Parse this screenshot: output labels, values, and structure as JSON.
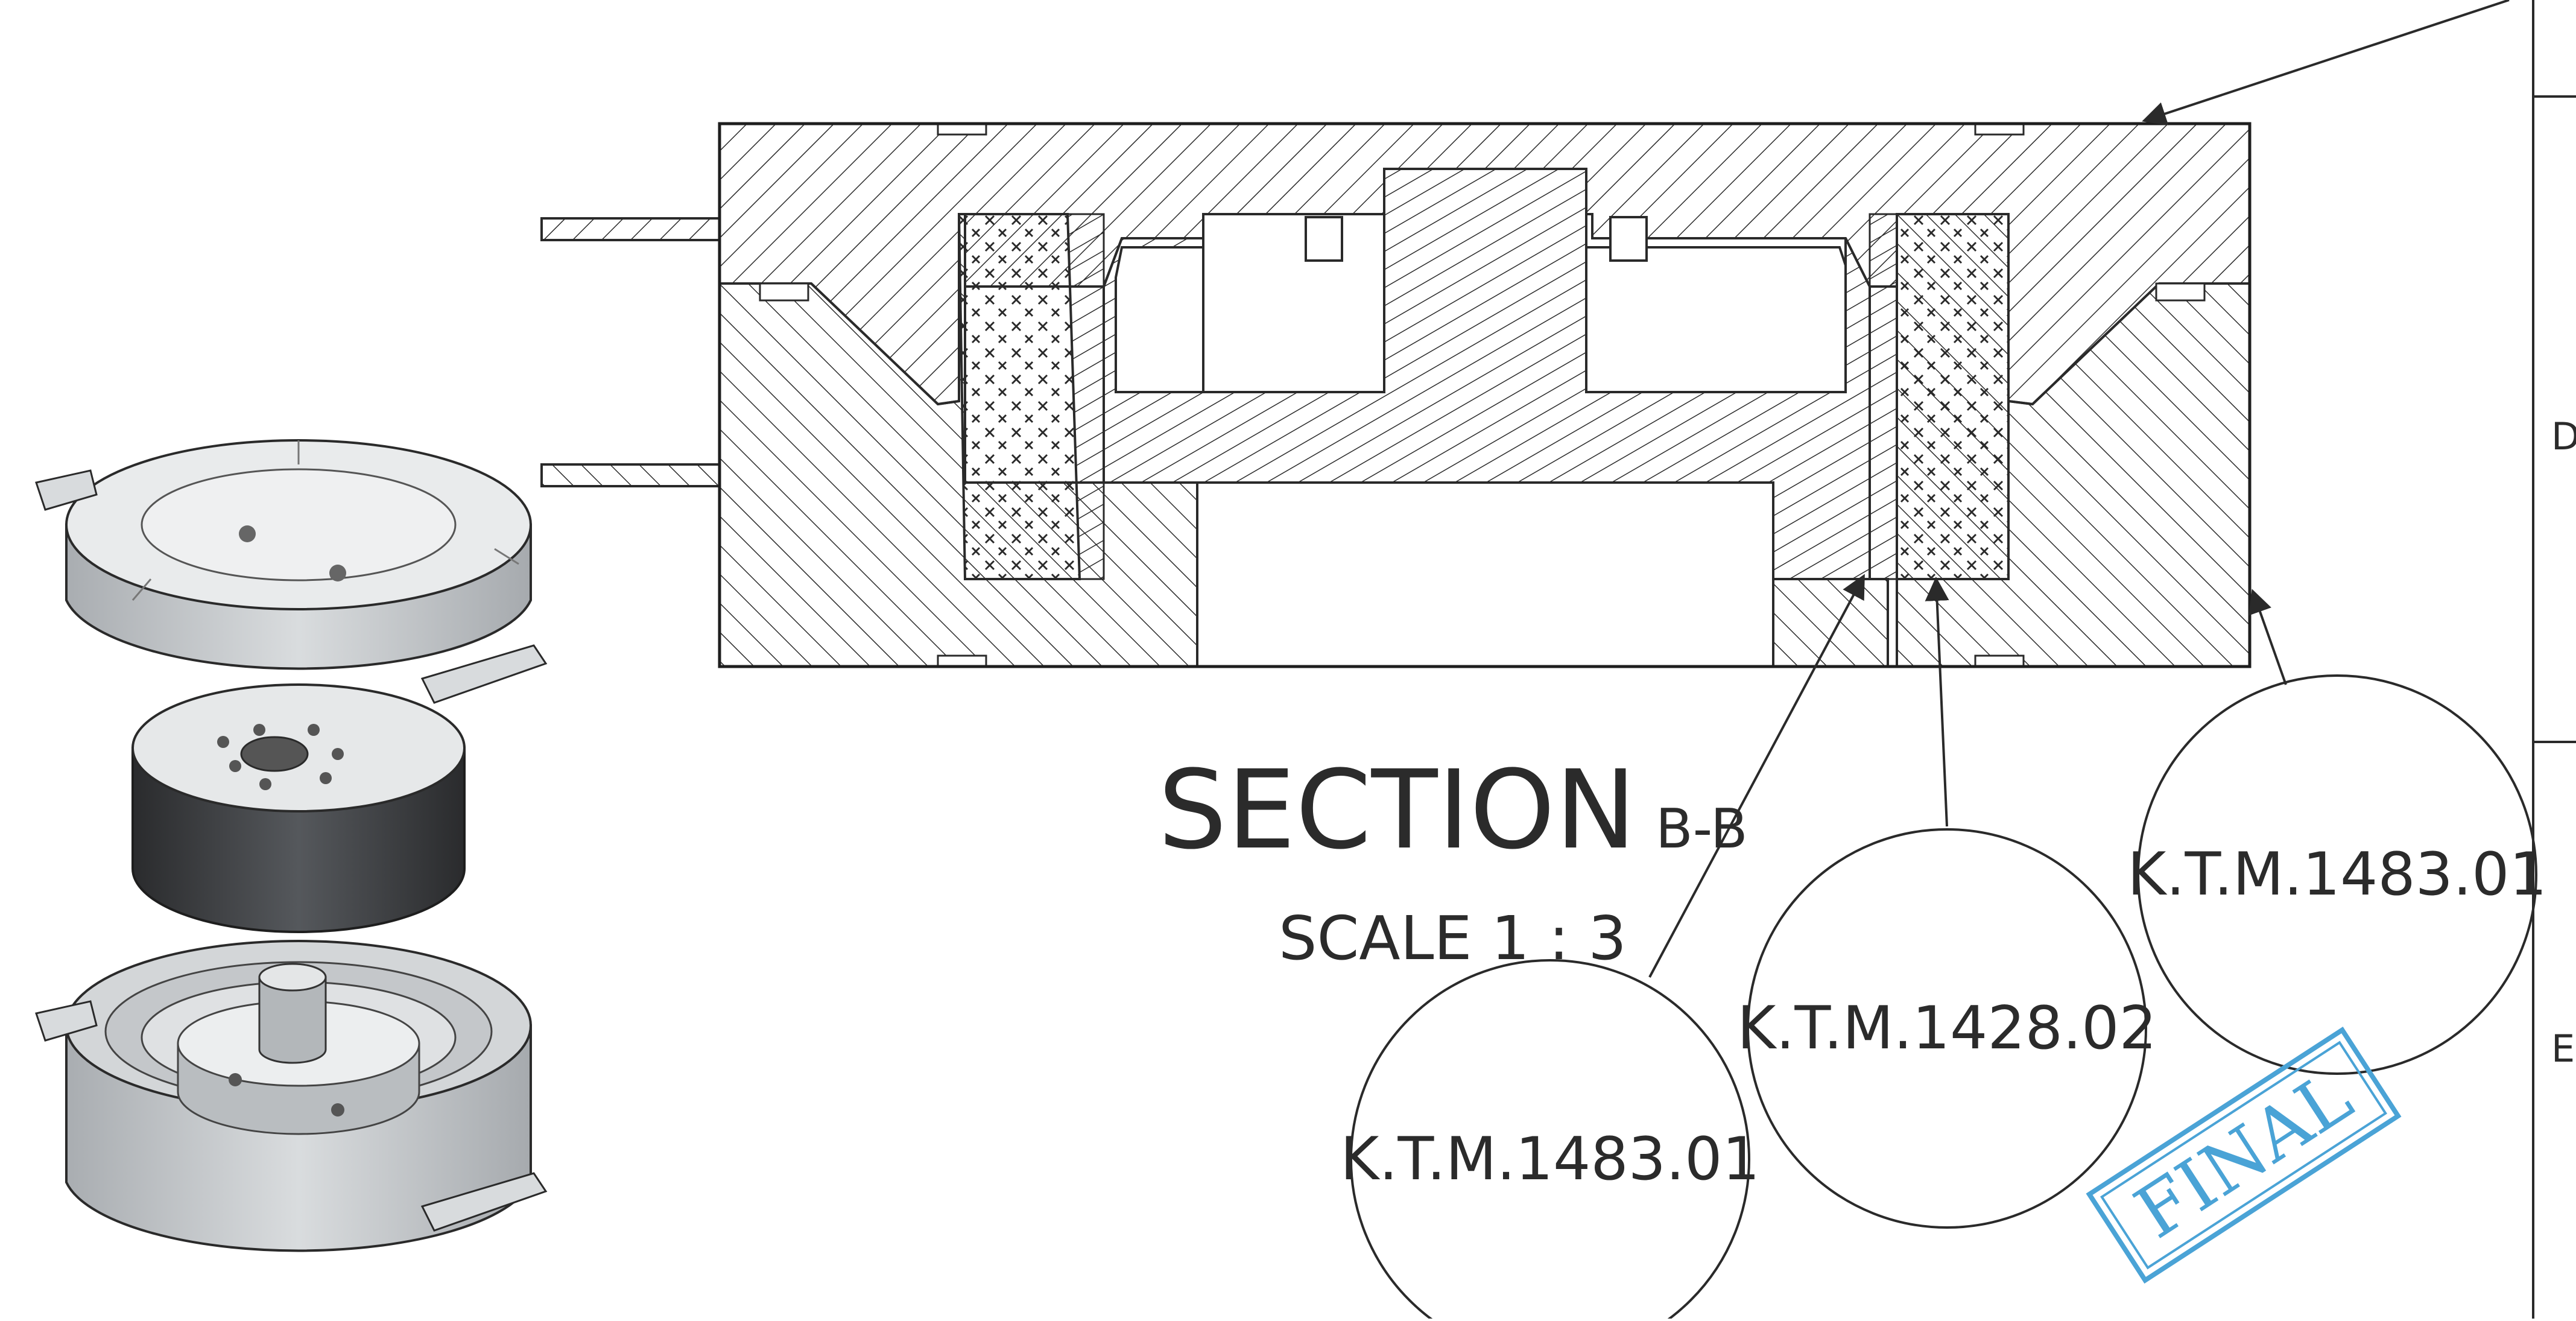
{
  "section_view": {
    "title": "SECTION",
    "id": "B-B",
    "scale": "SCALE 1 : 3"
  },
  "balloons": [
    {
      "label": "K.T.M.1483.01"
    },
    {
      "label": "K.T.M.1428.02"
    },
    {
      "label": "K.T.M.1483.01"
    }
  ],
  "border_zones": [
    "D",
    "E"
  ],
  "stamp": {
    "text": "FINAL"
  },
  "colors": {
    "line": "#2a2a2a",
    "stamp": "#4aa3d6",
    "paper": "#ffffff",
    "iso_light": "#cfd3d6",
    "iso_dark": "#3b3d40"
  }
}
